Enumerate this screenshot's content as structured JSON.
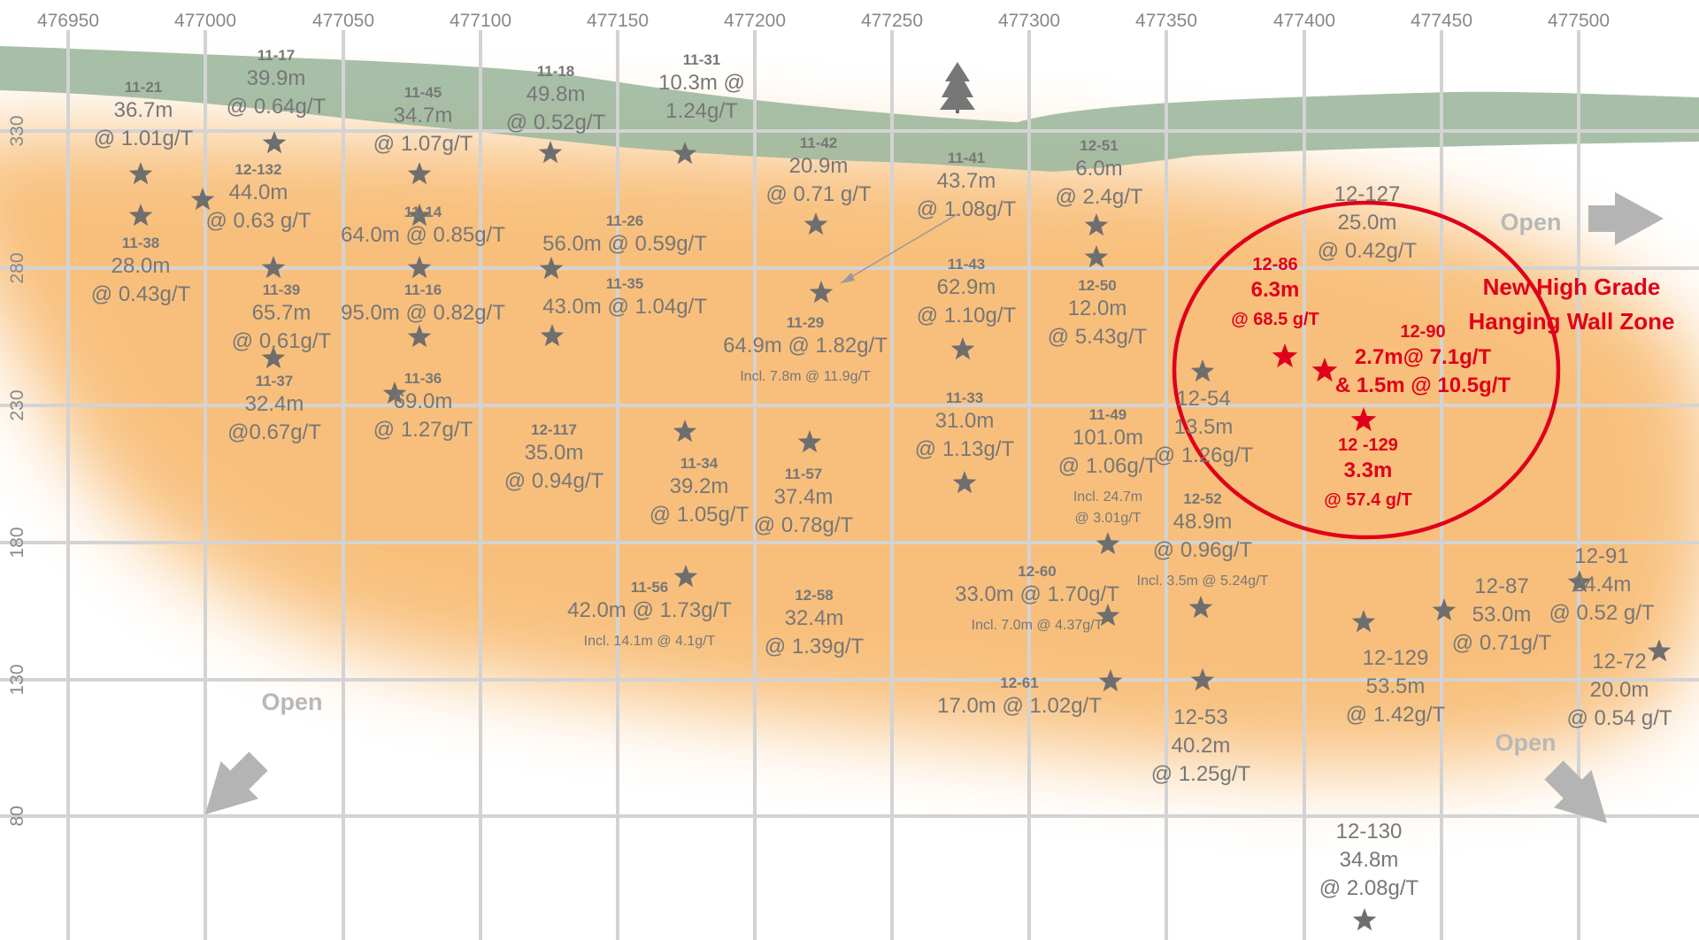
{
  "section": {
    "easting_ticks": [
      "476950",
      "477000",
      "477050",
      "477100",
      "477150",
      "477200",
      "477250",
      "477300",
      "477350",
      "477400",
      "477450",
      "477500"
    ],
    "elevation_ticks": [
      "330",
      "280",
      "230",
      "180",
      "130",
      "80"
    ],
    "colors": {
      "grid": "#d3d3d3",
      "overburden": "#9db89d",
      "zone": "#f7b566",
      "label": "#777777",
      "star": "#6e6e6e",
      "highlight": "#e0001b",
      "open_arrow": "#b4b4b4"
    },
    "open_labels": [
      "Open",
      "Open",
      "Open"
    ],
    "zone_title": [
      "New High Grade",
      "Hanging Wall Zone"
    ],
    "holes": [
      {
        "lines": [
          [
            "11-21",
            "h"
          ],
          [
            "36.7m",
            "l"
          ],
          [
            "@ 1.01g/T",
            "l"
          ]
        ]
      },
      {
        "lines": [
          [
            "11-17",
            "h"
          ],
          [
            "39.9m",
            "l"
          ],
          [
            "@ 0.64g/T",
            "l"
          ]
        ]
      },
      {
        "lines": [
          [
            "11-45",
            "h"
          ],
          [
            "34.7m",
            "l"
          ],
          [
            "@ 1.07g/T",
            "l"
          ]
        ]
      },
      {
        "lines": [
          [
            "11-18",
            "h"
          ],
          [
            "49.8m",
            "l"
          ],
          [
            "@ 0.52g/T",
            "l"
          ]
        ]
      },
      {
        "lines": [
          [
            "11-31",
            "h"
          ],
          [
            "10.3m @",
            "l"
          ],
          [
            "1.24g/T",
            "l"
          ]
        ]
      },
      {
        "lines": [
          [
            "12-132",
            "h"
          ],
          [
            "44.0m",
            "l"
          ],
          [
            "@ 0.63 g/T",
            "l"
          ]
        ]
      },
      {
        "lines": [
          [
            "11-38",
            "h"
          ],
          [
            "28.0m",
            "l"
          ],
          [
            "@ 0.43g/T",
            "l"
          ]
        ]
      },
      {
        "lines": [
          [
            "11-14",
            "h"
          ],
          [
            "64.0m @ 0.85g/T",
            "l"
          ]
        ]
      },
      {
        "lines": [
          [
            "11-26",
            "h"
          ],
          [
            "56.0m @ 0.59g/T",
            "l"
          ]
        ]
      },
      {
        "lines": [
          [
            "11-39",
            "h"
          ],
          [
            "65.7m",
            "l"
          ],
          [
            "@ 0.61g/T",
            "l"
          ]
        ]
      },
      {
        "lines": [
          [
            "11-16",
            "h"
          ],
          [
            "95.0m @ 0.82g/T",
            "l"
          ]
        ]
      },
      {
        "lines": [
          [
            "11-35",
            "h"
          ],
          [
            "43.0m @ 1.04g/T",
            "l"
          ]
        ]
      },
      {
        "lines": [
          [
            "11-37",
            "h"
          ],
          [
            "32.4m",
            "l"
          ],
          [
            "@0.67g/T",
            "l"
          ]
        ]
      },
      {
        "lines": [
          [
            "11-36",
            "h"
          ],
          [
            "69.0m",
            "l"
          ],
          [
            "@ 1.27g/T",
            "l"
          ]
        ]
      },
      {
        "lines": [
          [
            "11-42",
            "h"
          ],
          [
            "20.9m",
            "l"
          ],
          [
            "@ 0.71 g/T",
            "l"
          ]
        ]
      },
      {
        "lines": [
          [
            "11-41",
            "h"
          ],
          [
            "43.7m",
            "l"
          ],
          [
            "@ 1.08g/T",
            "l"
          ]
        ]
      },
      {
        "lines": [
          [
            "12-51",
            "h"
          ],
          [
            "6.0m",
            "l"
          ],
          [
            "@ 2.4g/T",
            "l"
          ]
        ]
      },
      {
        "lines": [
          [
            "11-29",
            "h"
          ],
          [
            "64.9m @ 1.82g/T",
            "l"
          ],
          [
            "Incl. 7.8m @ 11.9g/T",
            "s"
          ]
        ]
      },
      {
        "lines": [
          [
            "11-43",
            "h"
          ],
          [
            "62.9m",
            "l"
          ],
          [
            "@ 1.10g/T",
            "l"
          ]
        ]
      },
      {
        "lines": [
          [
            "12-50",
            "h"
          ],
          [
            "12.0m",
            "l"
          ],
          [
            "@ 5.43g/T",
            "l"
          ]
        ]
      },
      {
        "lines": [
          [
            "12-117",
            "h"
          ],
          [
            "35.0m",
            "l"
          ],
          [
            "@ 0.94g/T",
            "l"
          ]
        ]
      },
      {
        "lines": [
          [
            "11-34",
            "h"
          ],
          [
            "39.2m",
            "l"
          ],
          [
            "@ 1.05g/T",
            "l"
          ]
        ]
      },
      {
        "lines": [
          [
            "11-57",
            "h"
          ],
          [
            "37.4m",
            "l"
          ],
          [
            "@ 0.78g/T",
            "l"
          ]
        ]
      },
      {
        "lines": [
          [
            "11-33",
            "h"
          ],
          [
            "31.0m",
            "l"
          ],
          [
            "@ 1.13g/T",
            "l"
          ]
        ]
      },
      {
        "lines": [
          [
            "11-49",
            "h"
          ],
          [
            "101.0m",
            "l"
          ],
          [
            "@ 1.06g/T",
            "l"
          ],
          [
            "Incl. 24.7m",
            "s"
          ],
          [
            "@ 3.01g/T",
            "s"
          ]
        ]
      },
      {
        "lines": [
          [
            "12-54",
            "l"
          ],
          [
            "13.5m",
            "l"
          ],
          [
            "@ 1.26g/T",
            "l"
          ]
        ]
      },
      {
        "lines": [
          [
            "12-52",
            "h"
          ],
          [
            "48.9m",
            "l"
          ],
          [
            "@ 0.96g/T",
            "l"
          ],
          [
            "Incl.  3.5m @ 5.24g/T",
            "s"
          ]
        ]
      },
      {
        "lines": [
          [
            "12-127",
            "l"
          ],
          [
            "25.0m",
            "l"
          ],
          [
            "@ 0.42g/T",
            "l"
          ]
        ]
      },
      {
        "lines": [
          [
            "11-56",
            "h"
          ],
          [
            "42.0m @ 1.73g/T",
            "l"
          ],
          [
            "Incl.  14.1m @ 4.1g/T",
            "s"
          ]
        ]
      },
      {
        "lines": [
          [
            "12-58",
            "h"
          ],
          [
            "32.4m",
            "l"
          ],
          [
            "@ 1.39g/T",
            "l"
          ]
        ]
      },
      {
        "lines": [
          [
            "12-60",
            "h"
          ],
          [
            "33.0m @ 1.70g/T",
            "l"
          ],
          [
            "Incl.  7.0m @ 4.37g/T",
            "s"
          ]
        ]
      },
      {
        "lines": [
          [
            "12-61",
            "h"
          ],
          [
            "17.0m @ 1.02g/T",
            "l"
          ]
        ]
      },
      {
        "lines": [
          [
            "12-53",
            "l"
          ],
          [
            "40.2m",
            "l"
          ],
          [
            "@ 1.25g/T",
            "l"
          ]
        ]
      },
      {
        "lines": [
          [
            "12-129",
            "l"
          ],
          [
            "53.5m",
            "l"
          ],
          [
            "@ 1.42g/T",
            "l"
          ]
        ]
      },
      {
        "lines": [
          [
            "12-87",
            "l"
          ],
          [
            "53.0m",
            "l"
          ],
          [
            "@ 0.71g/T",
            "l"
          ]
        ]
      },
      {
        "lines": [
          [
            "12-91",
            "l"
          ],
          [
            "24.4m",
            "l"
          ],
          [
            "@ 0.52 g/T",
            "l"
          ]
        ]
      },
      {
        "lines": [
          [
            "12-72",
            "l"
          ],
          [
            "20.0m",
            "l"
          ],
          [
            "@ 0.54 g/T",
            "l"
          ]
        ]
      },
      {
        "lines": [
          [
            "12-130",
            "l"
          ],
          [
            "34.8m",
            "l"
          ],
          [
            "@ 2.08g/T",
            "l"
          ]
        ]
      },
      {
        "lines": [
          [
            "12-86",
            "rh"
          ],
          [
            "6.3m",
            "rl"
          ],
          [
            "@ 68.5 g/T",
            "rh"
          ]
        ]
      },
      {
        "lines": [
          [
            "12-90",
            "rh"
          ],
          [
            "2.7m@ 7.1g/T",
            "rl"
          ],
          [
            "& 1.5m @ 10.5g/T",
            "rl"
          ]
        ]
      },
      {
        "lines": [
          [
            "12 -129",
            "rh"
          ],
          [
            "3.3m",
            "rl"
          ],
          [
            "@ 57.4 g/T",
            "rh"
          ]
        ]
      }
    ]
  }
}
